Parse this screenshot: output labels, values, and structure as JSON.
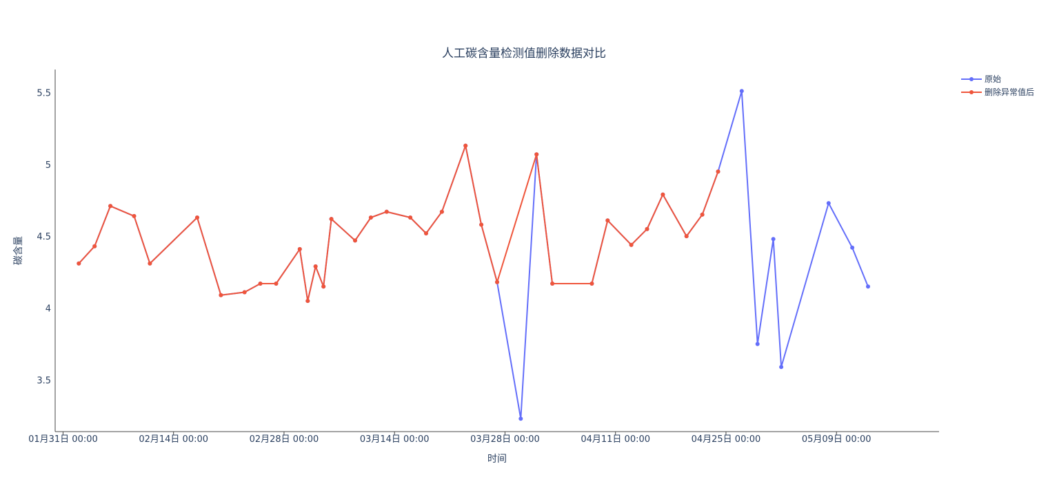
{
  "chart_data": {
    "type": "line",
    "title": "人工碳含量检测值删除数据对比",
    "xlabel": "时间",
    "ylabel": "碳含量",
    "x_ticks": [
      "01月31日 00:00",
      "02月14日 00:00",
      "02月28日 00:00",
      "03月14日 00:00",
      "03月28日 00:00",
      "04月11日 00:00",
      "04月25日 00:00",
      "05月09日 00:00"
    ],
    "y_ticks": [
      "3.5",
      "4",
      "4.5",
      "5",
      "5.5"
    ],
    "xlim": [
      "2024-01-30",
      "2024-05-21"
    ],
    "ylim": [
      3.14,
      5.66
    ],
    "grid": false,
    "legend_position": "top-right",
    "series": [
      {
        "name": "原始",
        "color": "#636efa",
        "points": [
          [
            "2024-02-02",
            4.31
          ],
          [
            "2024-02-04",
            4.43
          ],
          [
            "2024-02-06",
            4.71
          ],
          [
            "2024-02-09",
            4.64
          ],
          [
            "2024-02-11",
            4.31
          ],
          [
            "2024-02-17",
            4.63
          ],
          [
            "2024-02-20",
            4.09
          ],
          [
            "2024-02-23",
            4.11
          ],
          [
            "2024-02-25",
            4.17
          ],
          [
            "2024-02-27",
            4.17
          ],
          [
            "2024-03-01",
            4.41
          ],
          [
            "2024-03-02",
            4.05
          ],
          [
            "2024-03-03",
            4.29
          ],
          [
            "2024-03-04",
            4.15
          ],
          [
            "2024-03-05",
            4.62
          ],
          [
            "2024-03-08",
            4.47
          ],
          [
            "2024-03-10",
            4.63
          ],
          [
            "2024-03-12",
            4.67
          ],
          [
            "2024-03-15",
            4.63
          ],
          [
            "2024-03-17",
            4.52
          ],
          [
            "2024-03-19",
            4.67
          ],
          [
            "2024-03-22",
            5.13
          ],
          [
            "2024-03-24",
            4.58
          ],
          [
            "2024-03-26",
            4.18
          ],
          [
            "2024-03-29",
            3.23
          ],
          [
            "2024-03-31",
            5.07
          ],
          [
            "2024-04-02",
            4.17
          ],
          [
            "2024-04-07",
            4.17
          ],
          [
            "2024-04-09",
            4.61
          ],
          [
            "2024-04-12",
            4.44
          ],
          [
            "2024-04-14",
            4.55
          ],
          [
            "2024-04-16",
            4.79
          ],
          [
            "2024-04-19",
            4.5
          ],
          [
            "2024-04-21",
            4.65
          ],
          [
            "2024-04-23",
            4.95
          ],
          [
            "2024-04-26",
            5.51
          ],
          [
            "2024-04-28",
            3.75
          ],
          [
            "2024-04-30",
            4.48
          ],
          [
            "2024-05-01",
            3.59
          ],
          [
            "2024-05-07",
            4.73
          ],
          [
            "2024-05-10",
            4.42
          ],
          [
            "2024-05-12",
            4.15
          ]
        ]
      },
      {
        "name": "删除异常值后",
        "color": "#ef553b",
        "points": [
          [
            "2024-02-02",
            4.31
          ],
          [
            "2024-02-04",
            4.43
          ],
          [
            "2024-02-06",
            4.71
          ],
          [
            "2024-02-09",
            4.64
          ],
          [
            "2024-02-11",
            4.31
          ],
          [
            "2024-02-17",
            4.63
          ],
          [
            "2024-02-20",
            4.09
          ],
          [
            "2024-02-23",
            4.11
          ],
          [
            "2024-02-25",
            4.17
          ],
          [
            "2024-02-27",
            4.17
          ],
          [
            "2024-03-01",
            4.41
          ],
          [
            "2024-03-02",
            4.05
          ],
          [
            "2024-03-03",
            4.29
          ],
          [
            "2024-03-04",
            4.15
          ],
          [
            "2024-03-05",
            4.62
          ],
          [
            "2024-03-08",
            4.47
          ],
          [
            "2024-03-10",
            4.63
          ],
          [
            "2024-03-12",
            4.67
          ],
          [
            "2024-03-15",
            4.63
          ],
          [
            "2024-03-17",
            4.52
          ],
          [
            "2024-03-19",
            4.67
          ],
          [
            "2024-03-22",
            5.13
          ],
          [
            "2024-03-24",
            4.58
          ],
          [
            "2024-03-26",
            4.18
          ],
          [
            "2024-03-31",
            5.07
          ],
          [
            "2024-04-02",
            4.17
          ],
          [
            "2024-04-07",
            4.17
          ],
          [
            "2024-04-09",
            4.61
          ],
          [
            "2024-04-12",
            4.44
          ],
          [
            "2024-04-14",
            4.55
          ],
          [
            "2024-04-16",
            4.79
          ],
          [
            "2024-04-19",
            4.5
          ],
          [
            "2024-04-21",
            4.65
          ],
          [
            "2024-04-23",
            4.95
          ]
        ]
      }
    ]
  }
}
